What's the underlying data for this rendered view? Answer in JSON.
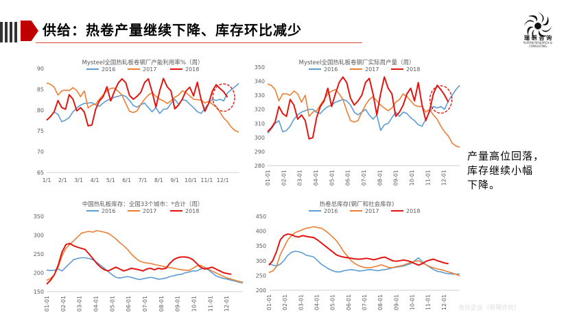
{
  "slide": {
    "title": "供给：热卷产量继续下降、库存环比减少",
    "note_lines": [
      "产量高位回落，",
      "库存继续小幅",
      "下降。"
    ],
    "logo_cn": "瑞 研 咨 询",
    "logo_en": "RUIYAN RESEARCH & CONSULTING",
    "watermark": "合伙企业（有限合伙）",
    "colors": {
      "accent": "#c00000",
      "s2016": "#5b9bd5",
      "s2017": "#ed7d31",
      "s2018": "#e3140f"
    }
  },
  "chart_data": [
    {
      "type": "line",
      "title": "Mysteel全国热轧板卷钢厂产能利用率%（周）",
      "ylim": [
        65,
        90
      ],
      "yticks": [
        65,
        70,
        75,
        80,
        85,
        90
      ],
      "xticks": [
        "1/1",
        "2/1",
        "3/1",
        "4/1",
        "5/1",
        "6/1",
        "7/1",
        "8/1",
        "9/1",
        "10/1",
        "11/1",
        "12/1"
      ],
      "n_weeks": 52,
      "legend": "top-center",
      "grid": false,
      "highlight": {
        "week": 47,
        "value": 83
      },
      "series": [
        {
          "name": "2016",
          "values": [
            77.5,
            78.5,
            79.5,
            79,
            77.2,
            77.6,
            78.2,
            79.6,
            80.5,
            81.2,
            81.6,
            81.7,
            81.8,
            81.3,
            80.9,
            81.7,
            82.3,
            82.6,
            83.1,
            83.3,
            83.6,
            83.3,
            82.3,
            81.1,
            80.7,
            81.3,
            81.7,
            80.6,
            79.6,
            80.6,
            79.2,
            80.2,
            80.3,
            81.6,
            82.6,
            81.4,
            82.5,
            82.3,
            81.4,
            80.6,
            79.6,
            79.2,
            80.4,
            81.6,
            82.6,
            82.3,
            82.6,
            82.2,
            84.1,
            84.9,
            85.6,
            86.4
          ]
        },
        {
          "name": "2017",
          "values": [
            86.5,
            86.2,
            85.5,
            83.6,
            84.6,
            84.8,
            84.7,
            85.4,
            84.7,
            83.2,
            84.6,
            80.5,
            81.2,
            81.4,
            82.6,
            83.7,
            84.6,
            85.2,
            85.3,
            84.5,
            83.6,
            81.6,
            79.7,
            79.4,
            79.8,
            81.4,
            82.6,
            83.6,
            84.2,
            83.3,
            82.6,
            82.2,
            81.6,
            82.2,
            83.1,
            83.6,
            84.6,
            84.2,
            83.4,
            82.6,
            82.5,
            82.4,
            81.7,
            82.1,
            81.4,
            80.9,
            79.5,
            78.1,
            77.2,
            75.9,
            75.1,
            74.7
          ]
        },
        {
          "name": "2018",
          "values": [
            77.6,
            78.4,
            79.6,
            82.3,
            80.6,
            80.2,
            83.7,
            82.6,
            79.8,
            80.6,
            79.5,
            76.2,
            76.4,
            80.2,
            82.2,
            83.2,
            85.6,
            82.2,
            84.5,
            86.5,
            87.5,
            86.6,
            83.5,
            82.6,
            83.3,
            84.3,
            86.6,
            87.5,
            84.4,
            80.7,
            84.6,
            87.6,
            85.6,
            84.6,
            80.3,
            81.2,
            82.6,
            84.6,
            85.5,
            83.4,
            86.7,
            82.5,
            79.7,
            81.6,
            84.6,
            86.1,
            85.2,
            84.4,
            83.1
          ]
        }
      ]
    },
    {
      "type": "line",
      "title": "Mysteel全国热轧板卷钢厂实际周产量（周）",
      "ylim": [
        280,
        350
      ],
      "yticks": [
        280,
        290,
        300,
        310,
        320,
        330,
        340,
        350
      ],
      "xticks": [
        "01-01",
        "02-01",
        "03-01",
        "04-01",
        "05-01",
        "06-01",
        "07-01",
        "08-01",
        "09-01",
        "10-01",
        "11-01",
        "12-01"
      ],
      "n_weeks": 52,
      "legend": "top-center",
      "grid": false,
      "highlight": {
        "week": 46,
        "value": 327
      },
      "series": [
        {
          "name": "2016",
          "values": [
            303,
            306,
            310,
            312,
            304,
            305,
            308,
            313,
            316,
            318,
            319,
            320,
            320,
            318,
            317,
            320,
            322,
            323,
            325,
            326,
            327,
            326,
            323,
            318,
            316,
            318,
            320,
            316,
            313,
            316,
            305,
            309,
            310,
            314,
            318,
            315,
            318,
            317,
            314,
            312,
            309,
            308,
            313,
            318,
            322,
            321,
            322,
            320,
            326,
            330,
            334,
            337
          ]
        },
        {
          "name": "2017",
          "values": [
            338,
            337,
            334,
            326,
            331,
            331,
            330,
            333,
            331,
            325,
            330,
            315,
            318,
            319,
            323,
            327,
            331,
            333,
            334,
            331,
            327,
            319,
            312,
            311,
            312,
            318,
            323,
            327,
            329,
            326,
            323,
            321,
            319,
            321,
            325,
            327,
            331,
            329,
            326,
            323,
            322,
            322,
            318,
            320,
            316,
            313,
            308,
            304,
            301,
            296,
            294,
            293
          ]
        },
        {
          "name": "2018",
          "values": [
            304,
            307,
            311,
            322,
            317,
            315,
            327,
            323,
            313,
            316,
            312,
            299,
            300,
            314,
            322,
            326,
            335,
            322,
            331,
            339,
            343,
            339,
            328,
            323,
            326,
            330,
            339,
            342,
            331,
            316,
            331,
            343,
            335,
            331,
            315,
            318,
            323,
            331,
            335,
            326,
            339,
            323,
            312,
            319,
            331,
            337,
            334,
            330,
            325
          ]
        }
      ]
    },
    {
      "type": "line",
      "title": "中国热轧板库存：全国33个城市：*合计（周）",
      "ylim": [
        150,
        350
      ],
      "yticks": [
        150,
        200,
        250,
        300,
        350
      ],
      "xticks": [
        "01-01",
        "02-01",
        "03-01",
        "04-01",
        "05-01",
        "06-01",
        "07-01",
        "08-01",
        "09-01",
        "10-01",
        "11-01",
        "12-01"
      ],
      "n_weeks": 52,
      "legend": "top-center",
      "grid": false,
      "series": [
        {
          "name": "2016",
          "values": [
            207,
            206,
            207,
            210,
            205,
            215,
            225,
            235,
            238,
            240,
            240,
            238,
            235,
            228,
            220,
            212,
            203,
            195,
            188,
            186,
            188,
            190,
            188,
            185,
            182,
            184,
            186,
            188,
            186,
            183,
            184,
            186,
            190,
            192,
            195,
            196,
            200,
            202,
            205,
            205,
            210,
            212,
            208,
            200,
            192,
            188,
            185,
            183,
            180,
            178,
            175,
            173
          ]
        },
        {
          "name": "2017",
          "values": [
            180,
            185,
            195,
            215,
            245,
            265,
            275,
            285,
            295,
            305,
            308,
            310,
            308,
            312,
            310,
            308,
            305,
            298,
            290,
            280,
            272,
            262,
            250,
            240,
            232,
            228,
            226,
            225,
            222,
            220,
            218,
            215,
            214,
            212,
            210,
            208,
            207,
            206,
            212,
            218,
            220,
            215,
            210,
            205,
            200,
            195,
            190,
            186,
            183,
            180,
            177,
            175
          ]
        },
        {
          "name": "2018",
          "values": [
            170,
            180,
            195,
            220,
            255,
            275,
            278,
            272,
            268,
            265,
            262,
            250,
            238,
            225,
            215,
            208,
            205,
            210,
            215,
            210,
            205,
            208,
            212,
            210,
            208,
            205,
            210,
            212,
            208,
            212,
            210,
            212,
            225,
            235,
            240,
            242,
            242,
            240,
            235,
            225,
            215,
            210,
            212,
            215,
            210,
            205,
            200,
            198,
            196
          ]
        }
      ]
    },
    {
      "type": "line",
      "title": "热卷总库存(钢厂和社会库存)",
      "ylim": [
        200,
        450
      ],
      "yticks": [
        200,
        250,
        300,
        350,
        400,
        450
      ],
      "xticks": [
        "01-01",
        "02-01",
        "03-01",
        "04-01",
        "05-01",
        "06-01",
        "07-01",
        "08-01",
        "09-01",
        "10-01",
        "11-01",
        "12-01"
      ],
      "n_weeks": 52,
      "legend": "top-center",
      "grid": false,
      "series": [
        {
          "name": "2016",
          "values": [
            290,
            285,
            282,
            288,
            300,
            318,
            328,
            332,
            330,
            326,
            318,
            316,
            312,
            300,
            288,
            280,
            272,
            266,
            262,
            262,
            266,
            268,
            270,
            268,
            265,
            266,
            268,
            270,
            268,
            266,
            268,
            270,
            272,
            276,
            278,
            280,
            282,
            286,
            290,
            300,
            310,
            296,
            286,
            278,
            270,
            264,
            262,
            258,
            256,
            255,
            254,
            255
          ]
        },
        {
          "name": "2017",
          "values": [
            260,
            265,
            280,
            320,
            345,
            370,
            385,
            395,
            400,
            405,
            410,
            412,
            415,
            412,
            410,
            402,
            392,
            380,
            368,
            350,
            330,
            315,
            300,
            290,
            283,
            279,
            276,
            276,
            279,
            282,
            286,
            282,
            277,
            276,
            280,
            282,
            285,
            290,
            294,
            298,
            300,
            292,
            286,
            280,
            276,
            272,
            270,
            266,
            262,
            258,
            254,
            248
          ]
        },
        {
          "name": "2018",
          "values": [
            285,
            300,
            330,
            370,
            385,
            390,
            388,
            382,
            380,
            385,
            382,
            380,
            378,
            370,
            360,
            350,
            340,
            330,
            320,
            315,
            312,
            310,
            308,
            306,
            305,
            306,
            308,
            306,
            303,
            306,
            310,
            312,
            306,
            300,
            298,
            300,
            302,
            300,
            296,
            290,
            285,
            290,
            298,
            302,
            305,
            300,
            296,
            292,
            290
          ]
        }
      ]
    }
  ]
}
